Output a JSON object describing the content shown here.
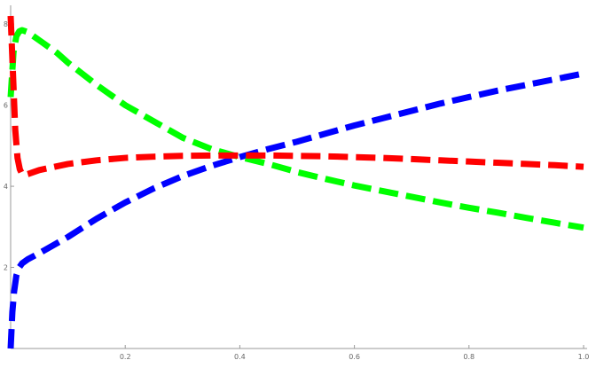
{
  "chart_data": {
    "type": "line",
    "title": "",
    "xlabel": "",
    "ylabel": "",
    "xlim": [
      0,
      1.0
    ],
    "ylim": [
      0,
      8.2
    ],
    "grid": false,
    "legend": "none",
    "x_ticks": [
      {
        "value": 0.2,
        "label": "0.2"
      },
      {
        "value": 0.4,
        "label": "0.4"
      },
      {
        "value": 0.6,
        "label": "0.6"
      },
      {
        "value": 0.8,
        "label": "0.8"
      },
      {
        "value": 1.0,
        "label": "1.0"
      }
    ],
    "y_ticks": [
      {
        "value": 2,
        "label": "2"
      },
      {
        "value": 4,
        "label": "4"
      },
      {
        "value": 6,
        "label": "6"
      },
      {
        "value": 8,
        "label": "8"
      }
    ],
    "series": [
      {
        "color": "#0000ff",
        "x": [
          0.0,
          0.003,
          0.006,
          0.01,
          0.015,
          0.02,
          0.03,
          0.05,
          0.1,
          0.15,
          0.2,
          0.25,
          0.3,
          0.35,
          0.4,
          0.45,
          0.5,
          0.55,
          0.6,
          0.65,
          0.7,
          0.75,
          0.8,
          0.85,
          0.9,
          0.95,
          1.0
        ],
        "y": [
          0.0,
          0.9,
          1.4,
          1.8,
          2.0,
          2.1,
          2.2,
          2.35,
          2.75,
          3.2,
          3.6,
          3.95,
          4.25,
          4.5,
          4.72,
          4.92,
          5.1,
          5.3,
          5.5,
          5.68,
          5.86,
          6.04,
          6.2,
          6.36,
          6.5,
          6.64,
          6.78
        ]
      },
      {
        "color": "#00ff00",
        "x": [
          0.0,
          0.005,
          0.01,
          0.015,
          0.02,
          0.03,
          0.05,
          0.08,
          0.1,
          0.15,
          0.2,
          0.25,
          0.3,
          0.35,
          0.4,
          0.45,
          0.5,
          0.55,
          0.6,
          0.65,
          0.7,
          0.75,
          0.8,
          0.85,
          0.9,
          0.95,
          1.0
        ],
        "y": [
          6.2,
          7.3,
          7.7,
          7.82,
          7.85,
          7.8,
          7.6,
          7.3,
          7.05,
          6.5,
          6.0,
          5.6,
          5.2,
          4.92,
          4.72,
          4.55,
          4.35,
          4.18,
          4.02,
          3.88,
          3.74,
          3.6,
          3.47,
          3.35,
          3.22,
          3.1,
          2.98
        ]
      },
      {
        "color": "#ff0000",
        "x": [
          0.0,
          0.004,
          0.008,
          0.012,
          0.016,
          0.02,
          0.025,
          0.03,
          0.05,
          0.1,
          0.15,
          0.2,
          0.25,
          0.3,
          0.35,
          0.4,
          0.45,
          0.5,
          0.55,
          0.6,
          0.65,
          0.7,
          0.75,
          0.8,
          0.85,
          0.9,
          0.95,
          1.0
        ],
        "y": [
          8.2,
          6.8,
          5.4,
          4.7,
          4.42,
          4.3,
          4.28,
          4.3,
          4.4,
          4.55,
          4.64,
          4.7,
          4.73,
          4.75,
          4.76,
          4.76,
          4.76,
          4.75,
          4.74,
          4.72,
          4.7,
          4.67,
          4.64,
          4.61,
          4.58,
          4.55,
          4.52,
          4.48
        ]
      }
    ]
  }
}
